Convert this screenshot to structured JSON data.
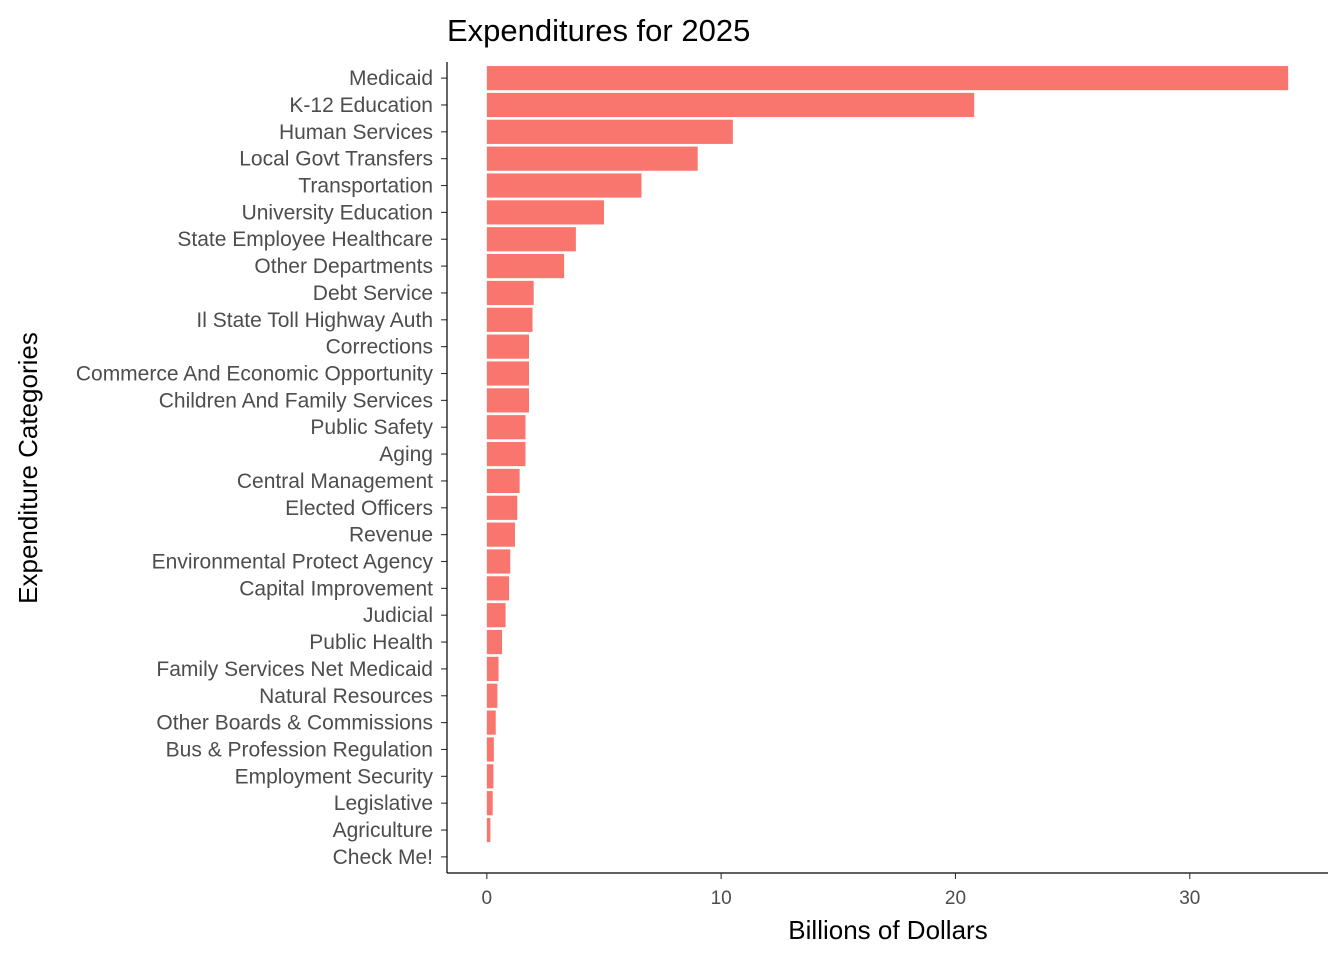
{
  "chart_data": {
    "type": "bar",
    "orientation": "horizontal",
    "title": "Expenditures for 2025",
    "xlabel": "Billions of Dollars",
    "ylabel": "Expenditure Categories",
    "xlim": [
      -1.7,
      35.9
    ],
    "xticks": [
      0,
      10,
      20,
      30
    ],
    "grid": false,
    "bar_color": "#F8766D",
    "categories": [
      "Medicaid",
      "K-12 Education",
      "Human Services",
      "Local Govt Transfers",
      "Transportation",
      "University Education",
      "State Employee Healthcare",
      "Other Departments",
      "Debt Service",
      "Il State Toll Highway Auth",
      "Corrections",
      "Commerce And Economic Opportunity",
      "Children And Family Services",
      "Public Safety",
      "Aging",
      "Central Management",
      "Elected Officers",
      "Revenue",
      "Environmental Protect Agency",
      "Capital Improvement",
      "Judicial",
      "Public Health",
      "Family Services Net Medicaid",
      "Natural Resources",
      "Other Boards & Commissions",
      "Bus & Profession Regulation",
      "Employment Security",
      "Legislative",
      "Agriculture",
      "Check Me!"
    ],
    "values": [
      34.2,
      20.8,
      10.5,
      9.0,
      6.6,
      5.0,
      3.8,
      3.3,
      2.0,
      1.95,
      1.8,
      1.8,
      1.8,
      1.65,
      1.65,
      1.4,
      1.3,
      1.2,
      1.0,
      0.95,
      0.8,
      0.65,
      0.5,
      0.45,
      0.38,
      0.3,
      0.28,
      0.25,
      0.15,
      0.0
    ]
  }
}
